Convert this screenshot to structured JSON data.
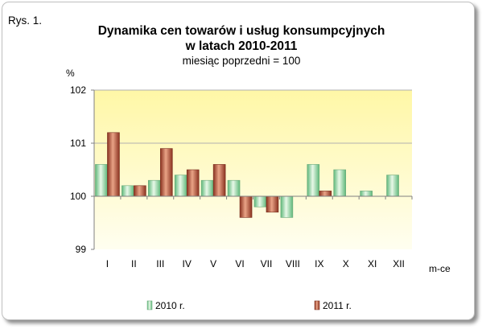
{
  "figure_label": "Rys. 1.",
  "chart_data": {
    "type": "bar",
    "title_line1": "Dynamika cen towarów i usług konsumpcyjnych",
    "title_line2": "w latach 2010-2011",
    "subtitle": "miesiąc poprzedni = 100",
    "ylabel": "%",
    "xlabel": "m-ce",
    "ylim": [
      99,
      102
    ],
    "baseline": 100,
    "yticks": [
      "99",
      "100",
      "101",
      "102"
    ],
    "grid": "horizontal",
    "legend_position": "bottom",
    "categories": [
      "I",
      "II",
      "III",
      "IV",
      "V",
      "VI",
      "VII",
      "VIII",
      "IX",
      "X",
      "XI",
      "XII"
    ],
    "series": [
      {
        "name": "2010 r.",
        "color": "#9fdca8",
        "values": [
          100.6,
          100.2,
          100.3,
          100.4,
          100.3,
          100.3,
          99.8,
          99.6,
          100.6,
          100.5,
          100.1,
          100.4
        ]
      },
      {
        "name": "2011 r.",
        "color": "#b5533c",
        "values": [
          101.2,
          100.2,
          100.9,
          100.5,
          100.6,
          99.6,
          99.7,
          null,
          100.1,
          null,
          null,
          null
        ]
      }
    ]
  }
}
